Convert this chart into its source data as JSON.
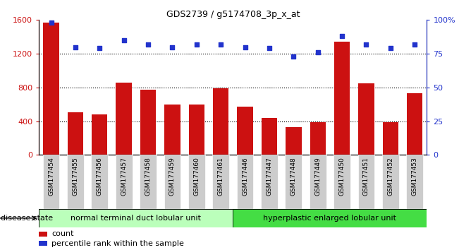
{
  "title": "GDS2739 / g5174708_3p_x_at",
  "categories": [
    "GSM177454",
    "GSM177455",
    "GSM177456",
    "GSM177457",
    "GSM177458",
    "GSM177459",
    "GSM177460",
    "GSM177461",
    "GSM177446",
    "GSM177447",
    "GSM177448",
    "GSM177449",
    "GSM177450",
    "GSM177451",
    "GSM177452",
    "GSM177453"
  ],
  "counts": [
    1570,
    510,
    480,
    860,
    770,
    600,
    600,
    790,
    570,
    440,
    330,
    390,
    1340,
    850,
    390,
    730
  ],
  "percentiles": [
    98,
    80,
    79,
    85,
    82,
    80,
    82,
    82,
    80,
    79,
    73,
    76,
    88,
    82,
    79,
    82
  ],
  "group1_label": "normal terminal duct lobular unit",
  "group2_label": "hyperplastic enlarged lobular unit",
  "group1_count": 8,
  "group2_count": 8,
  "disease_state_label": "disease state",
  "legend_count_label": "count",
  "legend_pct_label": "percentile rank within the sample",
  "bar_color": "#cc1111",
  "dot_color": "#2233cc",
  "ylim_left": [
    0,
    1600
  ],
  "ylim_right": [
    0,
    100
  ],
  "yticks_left": [
    0,
    400,
    800,
    1200,
    1600
  ],
  "yticks_right": [
    0,
    25,
    50,
    75,
    100
  ],
  "yticklabels_right": [
    "0",
    "25",
    "50",
    "75",
    "100%"
  ],
  "grid_values": [
    400,
    800,
    1200
  ],
  "group1_color": "#bbffbb",
  "group2_color": "#44dd44",
  "xticklabel_bg": "#cccccc",
  "bg_color": "#ffffff"
}
